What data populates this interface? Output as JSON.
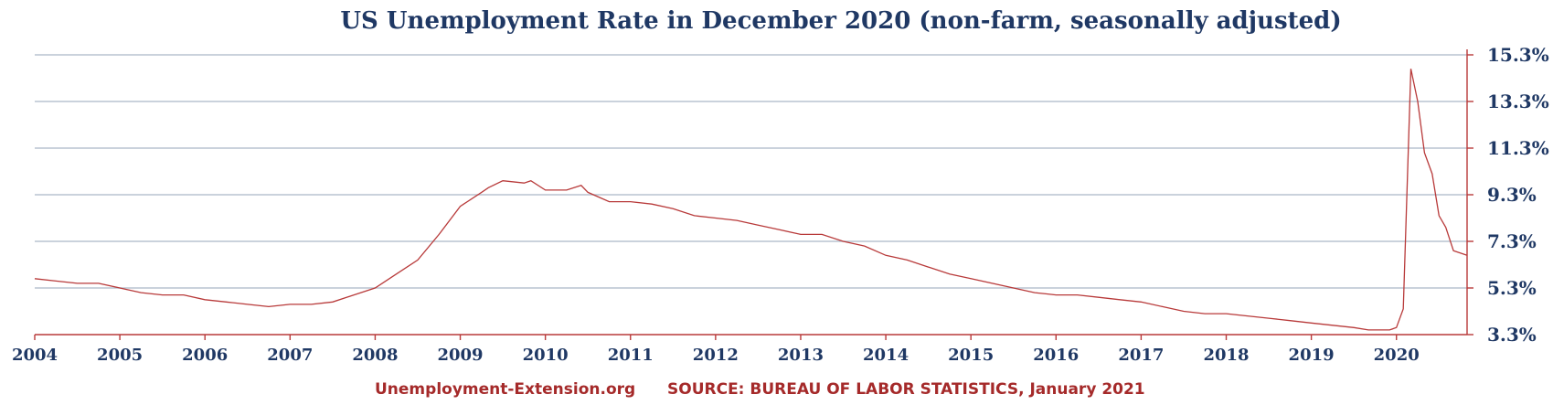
{
  "chart_data": {
    "type": "line",
    "title": "US Unemployment Rate in December 2020 (non-farm, seasonally adjusted)",
    "xlabel": "",
    "ylabel": "",
    "y_axis_position": "right",
    "grid": "horizontal",
    "xlim": [
      2004,
      2020.83
    ],
    "ylim": [
      3.3,
      15.3
    ],
    "x_ticks": [
      "2004",
      "2005",
      "2006",
      "2007",
      "2008",
      "2009",
      "2010",
      "2011",
      "2012",
      "2013",
      "2014",
      "2015",
      "2016",
      "2017",
      "2018",
      "2019",
      "2020"
    ],
    "y_ticks": [
      "3.3%",
      "5.3%",
      "7.3%",
      "9.3%",
      "11.3%",
      "13.3%",
      "15.3%"
    ],
    "series": [
      {
        "color": "#b83a3a",
        "x": [
          2004.0,
          2004.25,
          2004.5,
          2004.75,
          2005.0,
          2005.25,
          2005.5,
          2005.75,
          2006.0,
          2006.25,
          2006.5,
          2006.75,
          2007.0,
          2007.25,
          2007.5,
          2007.75,
          2008.0,
          2008.25,
          2008.5,
          2008.75,
          2009.0,
          2009.25,
          2009.33,
          2009.5,
          2009.75,
          2009.83,
          2010.0,
          2010.25,
          2010.42,
          2010.5,
          2010.75,
          2011.0,
          2011.25,
          2011.5,
          2011.75,
          2012.0,
          2012.25,
          2012.5,
          2012.75,
          2013.0,
          2013.25,
          2013.5,
          2013.75,
          2014.0,
          2014.25,
          2014.5,
          2014.75,
          2015.0,
          2015.25,
          2015.5,
          2015.75,
          2016.0,
          2016.25,
          2016.5,
          2016.75,
          2017.0,
          2017.25,
          2017.5,
          2017.75,
          2018.0,
          2018.25,
          2018.5,
          2018.75,
          2019.0,
          2019.25,
          2019.5,
          2019.67,
          2019.75,
          2019.83,
          2019.92,
          2020.0,
          2020.08,
          2020.17,
          2020.25,
          2020.33,
          2020.42,
          2020.5,
          2020.58,
          2020.67,
          2020.83
        ],
        "values": [
          5.7,
          5.6,
          5.5,
          5.5,
          5.3,
          5.1,
          5.0,
          5.0,
          4.8,
          4.7,
          4.6,
          4.5,
          4.6,
          4.6,
          4.7,
          5.0,
          5.3,
          5.9,
          6.5,
          7.6,
          8.8,
          9.4,
          9.6,
          9.9,
          9.8,
          9.9,
          9.5,
          9.5,
          9.7,
          9.4,
          9.0,
          9.0,
          8.9,
          8.7,
          8.4,
          8.3,
          8.2,
          8.0,
          7.8,
          7.6,
          7.6,
          7.3,
          7.1,
          6.7,
          6.5,
          6.2,
          5.9,
          5.7,
          5.5,
          5.3,
          5.1,
          5.0,
          5.0,
          4.9,
          4.8,
          4.7,
          4.5,
          4.3,
          4.2,
          4.2,
          4.1,
          4.0,
          3.9,
          3.8,
          3.7,
          3.6,
          3.5,
          3.5,
          3.5,
          3.5,
          3.6,
          4.4,
          14.7,
          13.3,
          11.1,
          10.2,
          8.4,
          7.9,
          6.9,
          6.7
        ]
      }
    ],
    "footer": {
      "site": "Unemployment-Extension.org",
      "source": "SOURCE: BUREAU OF LABOR STATISTICS, January 2021"
    }
  }
}
